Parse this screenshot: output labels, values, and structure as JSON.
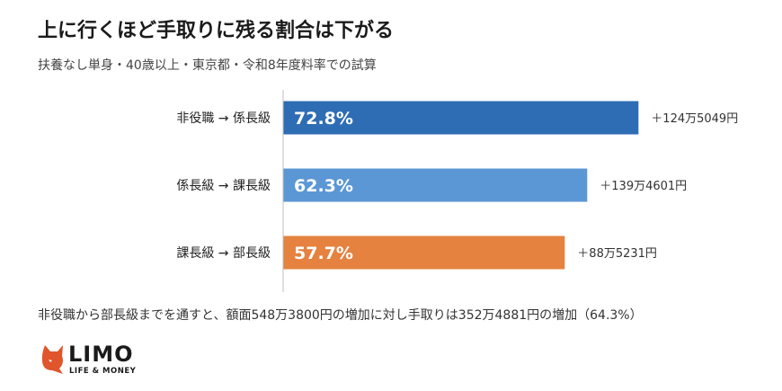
{
  "header": {
    "title": "上に行くほど手取りに残る割合は下がる",
    "subtitle": "扶養なし単身・40歳以上・東京都・令和8年度料率での試算"
  },
  "chart_data": {
    "type": "bar",
    "orientation": "horizontal",
    "categories": [
      "非役職 → 係長級",
      "係長級 → 課長級",
      "課長級 → 部長級"
    ],
    "values": [
      72.8,
      62.3,
      57.7
    ],
    "value_labels": [
      "72.8%",
      "62.3%",
      "57.7%"
    ],
    "annotations": [
      "＋124万5049円",
      "＋139万4601円",
      "＋88万5231円"
    ],
    "bar_colors": [
      "#2e6db4",
      "#5b97d5",
      "#e5823f"
    ],
    "xlim": [
      0,
      100
    ],
    "grid": false
  },
  "footer": {
    "note": "非役職から部長級までを通すと、額面548万3800円の増加に対し手取りは352万4881円の増加（64.3%）",
    "logo_word": "LIMO",
    "logo_tagline": "LIFE & MONEY",
    "logo_color": "#e0552b"
  }
}
